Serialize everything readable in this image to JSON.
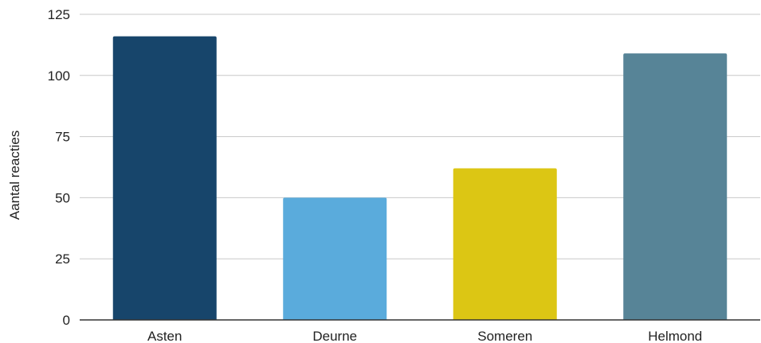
{
  "chart_data": {
    "type": "bar",
    "title": "",
    "xlabel": "",
    "ylabel": "Aantal reacties",
    "categories": [
      "Asten",
      "Deurne",
      "Someren",
      "Helmond"
    ],
    "values": [
      116,
      50,
      62,
      109
    ],
    "colors": [
      "#17456b",
      "#5aabdc",
      "#dcc614",
      "#578497"
    ],
    "ylim": [
      0,
      125
    ],
    "yticks": [
      0,
      25,
      50,
      75,
      100,
      125
    ],
    "grid": true,
    "legend": "none",
    "gridline_color": "#c8c8c8",
    "axis_color": "#333333"
  }
}
